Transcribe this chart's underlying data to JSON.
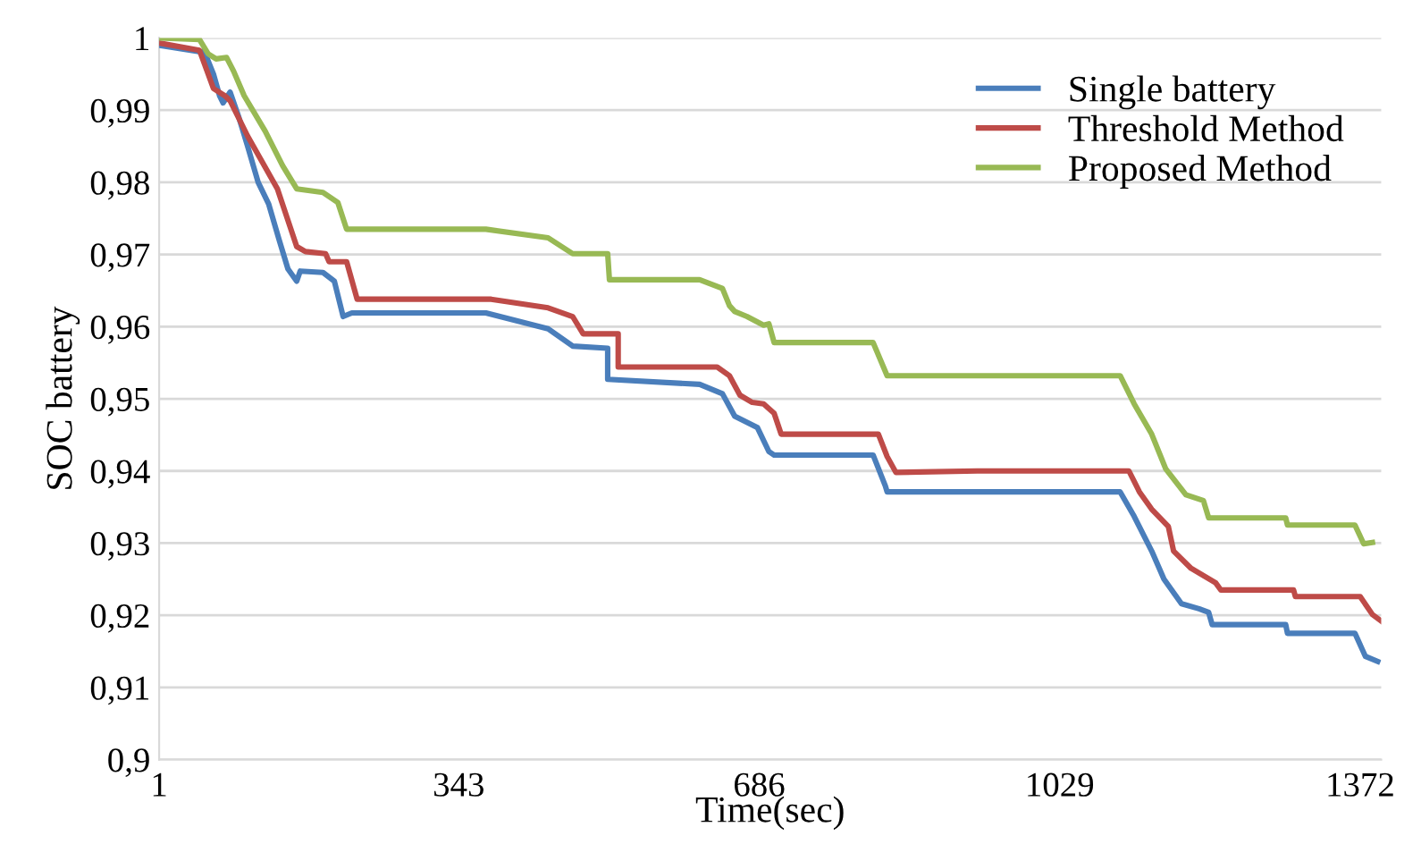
{
  "chart_data": {
    "type": "step",
    "xlabel": "Time(sec)",
    "ylabel": "SOC battery",
    "xlim": [
      1,
      1396
    ],
    "xticks": [
      1,
      343,
      686,
      1029,
      1372
    ],
    "ylim": [
      0.9,
      1
    ],
    "yticks": [
      {
        "value": 0.9,
        "label": "0,9"
      },
      {
        "value": 0.91,
        "label": "0,91"
      },
      {
        "value": 0.92,
        "label": "0,92"
      },
      {
        "value": 0.93,
        "label": "0,93"
      },
      {
        "value": 0.94,
        "label": "0,94"
      },
      {
        "value": 0.95,
        "label": "0,95"
      },
      {
        "value": 0.96,
        "label": "0,96"
      },
      {
        "value": 0.97,
        "label": "0,97"
      },
      {
        "value": 0.98,
        "label": "0,98"
      },
      {
        "value": 0.99,
        "label": "0,99"
      },
      {
        "value": 1,
        "label": "1"
      }
    ],
    "grid": "y",
    "legend": "top right",
    "marker": "none",
    "line_style": "solid",
    "series": [
      {
        "name": "Single battery",
        "color": "#4a7ebb",
        "x": [
          1,
          53,
          63,
          70,
          74,
          82,
          92,
          102,
          114,
          126,
          138,
          148,
          158,
          162,
          188,
          201,
          211,
          221,
          374,
          445,
          473,
          513,
          513,
          618,
          644,
          658,
          684,
          697,
          703,
          816,
          830,
          832,
          1098,
          1114,
          1134,
          1148,
          1168,
          1188,
          1199,
          1203,
          1287,
          1289,
          1366,
          1378,
          1392
        ],
        "values": [
          0.999,
          0.998,
          0.995,
          0.992,
          0.991,
          0.9925,
          0.989,
          0.985,
          0.98,
          0.977,
          0.972,
          0.968,
          0.9663,
          0.9677,
          0.9675,
          0.9663,
          0.9614,
          0.9619,
          0.9619,
          0.9597,
          0.9573,
          0.957,
          0.9527,
          0.952,
          0.9507,
          0.9476,
          0.946,
          0.9427,
          0.9422,
          0.9422,
          0.9379,
          0.9371,
          0.9371,
          0.9337,
          0.9289,
          0.925,
          0.9216,
          0.9209,
          0.9204,
          0.9187,
          0.9187,
          0.9175,
          0.9175,
          0.9143,
          0.9136
        ]
      },
      {
        "name": "Threshold Method",
        "color": "#be4b48",
        "x": [
          1,
          47,
          63,
          76,
          82,
          102,
          136,
          158,
          168,
          191,
          195,
          215,
          227,
          380,
          445,
          473,
          485,
          525,
          525,
          638,
          652,
          664,
          678,
          691,
          703,
          711,
          822,
          832,
          842,
          935,
          1108,
          1120,
          1134,
          1153,
          1159,
          1179,
          1207,
          1213,
          1296,
          1298,
          1372,
          1386,
          1396
        ],
        "values": [
          0.9993,
          0.9983,
          0.993,
          0.992,
          0.9913,
          0.9864,
          0.9791,
          0.9711,
          0.9704,
          0.9701,
          0.969,
          0.969,
          0.9638,
          0.9638,
          0.9626,
          0.9614,
          0.959,
          0.959,
          0.9544,
          0.9544,
          0.9532,
          0.9505,
          0.9495,
          0.9493,
          0.948,
          0.9451,
          0.9451,
          0.942,
          0.9398,
          0.94,
          0.94,
          0.9371,
          0.9347,
          0.9323,
          0.9289,
          0.9265,
          0.9245,
          0.9235,
          0.9235,
          0.9226,
          0.9226,
          0.9201,
          0.9192
        ]
      },
      {
        "name": "Proposed Method",
        "color": "#98b954",
        "x": [
          1,
          47,
          57,
          66,
          78,
          86,
          98,
          122,
          142,
          158,
          188,
          205,
          215,
          374,
          445,
          473,
          513,
          515,
          618,
          644,
          652,
          658,
          672,
          691,
          697,
          703,
          816,
          832,
          935,
          1098,
          1114,
          1134,
          1150,
          1173,
          1193,
          1199,
          1287,
          1289,
          1366,
          1376,
          1386
        ],
        "values": [
          1.0,
          0.9998,
          0.9978,
          0.9971,
          0.9973,
          0.9954,
          0.992,
          0.9871,
          0.9823,
          0.9791,
          0.9786,
          0.9772,
          0.9735,
          0.9735,
          0.9723,
          0.9701,
          0.9701,
          0.9665,
          0.9665,
          0.9653,
          0.9629,
          0.9621,
          0.9614,
          0.9602,
          0.9604,
          0.9578,
          0.9578,
          0.9532,
          0.9532,
          0.9532,
          0.9493,
          0.9451,
          0.9403,
          0.9367,
          0.9359,
          0.9335,
          0.9335,
          0.9325,
          0.9325,
          0.9299,
          0.9301
        ]
      }
    ]
  }
}
